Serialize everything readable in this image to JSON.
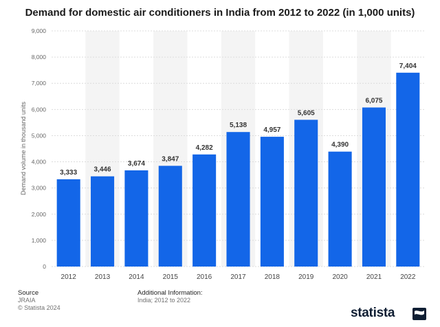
{
  "chart_data": {
    "type": "bar",
    "title": "Demand for domestic air conditioners in India from 2012 to 2022 (in 1,000 units)",
    "ylabel": "Demand volume in thousand units",
    "xlabel": "",
    "categories": [
      "2012",
      "2013",
      "2014",
      "2015",
      "2016",
      "2017",
      "2018",
      "2019",
      "2020",
      "2021",
      "2022"
    ],
    "values": [
      3333,
      3446,
      3674,
      3847,
      4282,
      5138,
      4957,
      5605,
      4390,
      6075,
      7404
    ],
    "value_labels": [
      "3,333",
      "3,446",
      "3,674",
      "3,847",
      "4,282",
      "5,138",
      "4,957",
      "5,605",
      "4,390",
      "6,075",
      "7,404"
    ],
    "ylim": [
      0,
      9000
    ],
    "yticks": [
      0,
      1000,
      2000,
      3000,
      4000,
      5000,
      6000,
      7000,
      8000,
      9000
    ],
    "ytick_labels": [
      "0",
      "1,000",
      "2,000",
      "3,000",
      "4,000",
      "5,000",
      "6,000",
      "7,000",
      "8,000",
      "9,000"
    ],
    "grid": true,
    "bar_color": "#1366e8",
    "band_color": "#f4f4f4"
  },
  "footer": {
    "source_heading": "Source",
    "source_lines": [
      "JRAIA",
      "© Statista 2024"
    ],
    "info_heading": "Additional Information:",
    "info_text": "India; 2012 to 2022"
  },
  "brand": {
    "name": "statista",
    "icon": "statista-flag-icon"
  }
}
